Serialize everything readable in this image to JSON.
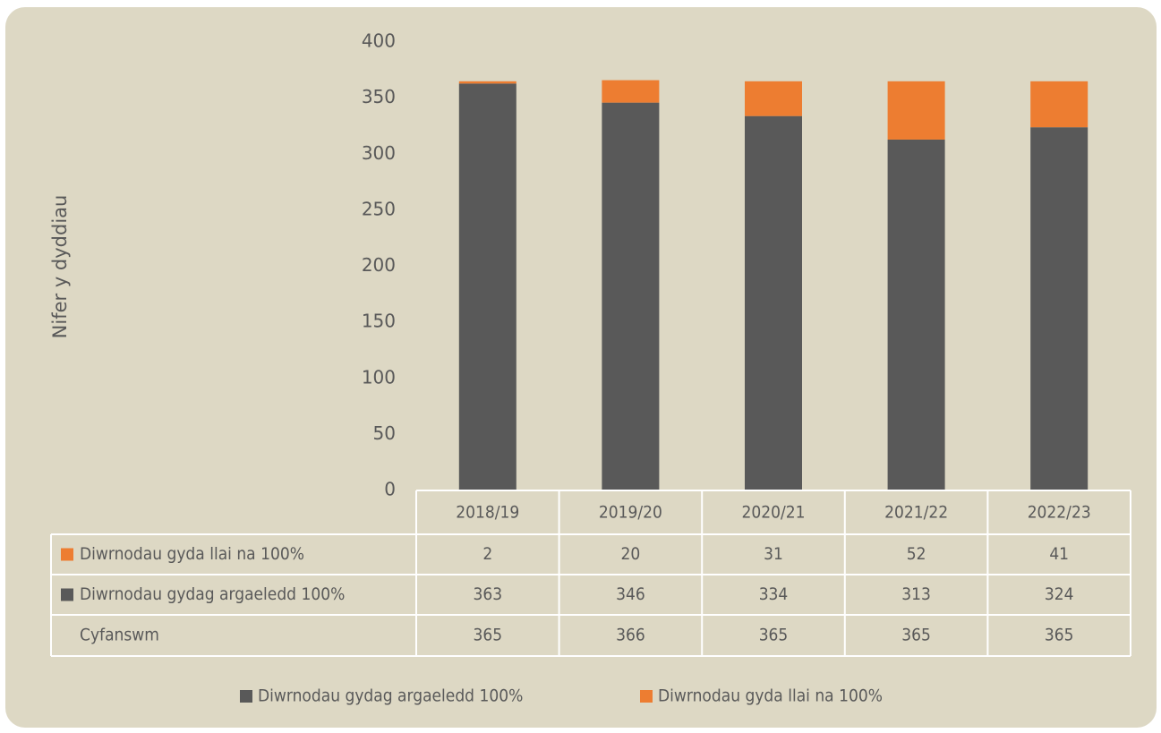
{
  "chart_data": {
    "type": "stacked_bar",
    "y_label": "Nifer y dyddiau",
    "categories": [
      "2018/19",
      "2019/20",
      "2020/21",
      "2021/22",
      "2022/23"
    ],
    "series": [
      {
        "name": "Diwrnodau gydag argaeledd 100%",
        "color": "#595959",
        "values": [
          363,
          346,
          334,
          313,
          324
        ]
      },
      {
        "name": "Diwrnodau gyda llai na 100%",
        "color": "#ed7d31",
        "values": [
          2,
          20,
          31,
          52,
          41
        ]
      }
    ],
    "totals": {
      "name": "Cyfanswm",
      "values": [
        365,
        366,
        365,
        365,
        365
      ]
    },
    "ylim": [
      0,
      400
    ],
    "yticks": [
      0,
      50,
      100,
      150,
      200,
      250,
      300,
      350,
      400
    ],
    "grid": false
  }
}
